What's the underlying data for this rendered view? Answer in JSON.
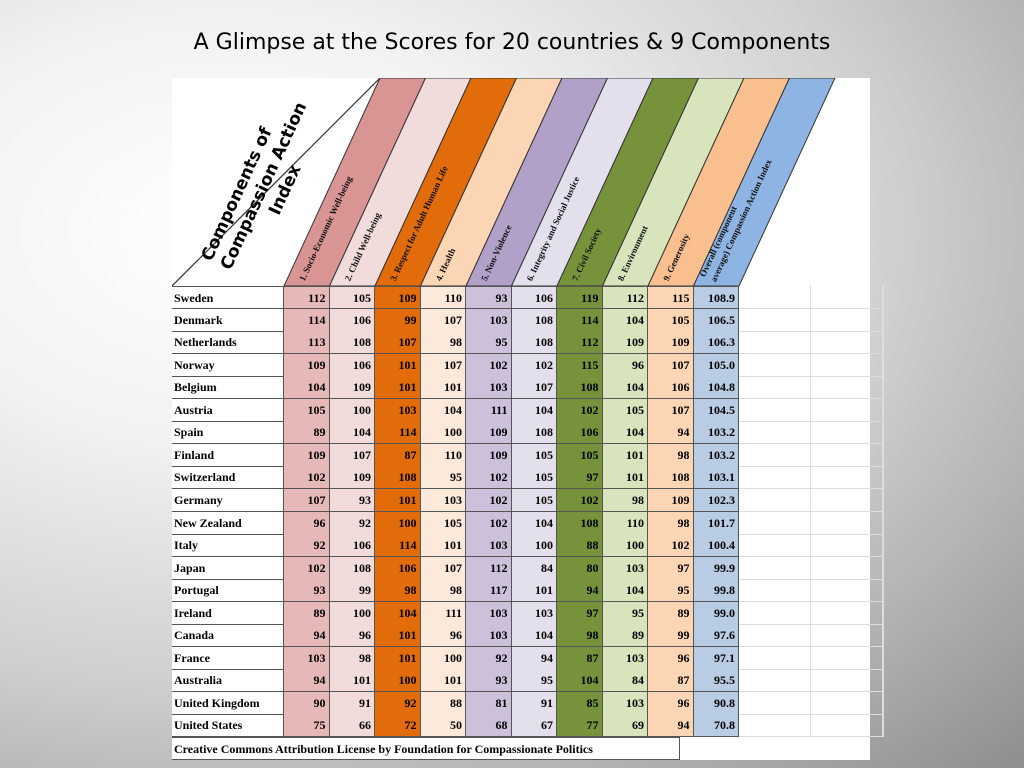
{
  "title": "A Glimpse at the Scores for 20 countries & 9 Components",
  "corner_label": [
    "Components of",
    "Compassion Action",
    "Index"
  ],
  "columns": [
    {
      "label": "1. Socio-Economic Well-being",
      "header_color": "#d99594",
      "cell_color": "#e6b8b7"
    },
    {
      "label": "2. Child Well-being",
      "header_color": "#f2dcdb",
      "cell_color": "#f2dcdb"
    },
    {
      "label": "3. Respect for Adult Human Life",
      "header_color": "#e26b0a",
      "cell_color": "#e26b0a"
    },
    {
      "label": "4. Health",
      "header_color": "#fcd5b4",
      "cell_color": "#fde9d9"
    },
    {
      "label": "5. Non-Violence",
      "header_color": "#b1a0c7",
      "cell_color": "#ccc0da"
    },
    {
      "label": "6. Integrity and Social Justice",
      "header_color": "#e4dfec",
      "cell_color": "#e4dfec"
    },
    {
      "label": "7. Civil Society",
      "header_color": "#76933c",
      "cell_color": "#76933c"
    },
    {
      "label": "8. Environment",
      "header_color": "#d8e4bc",
      "cell_color": "#d8e4bc"
    },
    {
      "label": "9. Generosity",
      "header_color": "#fabf8f",
      "cell_color": "#fcd5b4"
    },
    {
      "label": "Overall (component average) Compassion Action Index",
      "header_color": "#8db4e2",
      "cell_color": "#b8cce4"
    }
  ],
  "rows": [
    {
      "country": "Sweden",
      "values": [
        "112",
        "105",
        "109",
        "110",
        "93",
        "106",
        "119",
        "112",
        "115",
        "108.9"
      ]
    },
    {
      "country": "Denmark",
      "values": [
        "114",
        "106",
        "99",
        "107",
        "103",
        "108",
        "114",
        "104",
        "105",
        "106.5"
      ]
    },
    {
      "country": "Netherlands",
      "values": [
        "113",
        "108",
        "107",
        "98",
        "95",
        "108",
        "112",
        "109",
        "109",
        "106.3"
      ]
    },
    {
      "country": "Norway",
      "values": [
        "109",
        "106",
        "101",
        "107",
        "102",
        "102",
        "115",
        "96",
        "107",
        "105.0"
      ]
    },
    {
      "country": "Belgium",
      "values": [
        "104",
        "109",
        "101",
        "101",
        "103",
        "107",
        "108",
        "104",
        "106",
        "104.8"
      ]
    },
    {
      "country": "Austria",
      "values": [
        "105",
        "100",
        "103",
        "104",
        "111",
        "104",
        "102",
        "105",
        "107",
        "104.5"
      ]
    },
    {
      "country": "Spain",
      "values": [
        "89",
        "104",
        "114",
        "100",
        "109",
        "108",
        "106",
        "104",
        "94",
        "103.2"
      ]
    },
    {
      "country": "Finland",
      "values": [
        "109",
        "107",
        "87",
        "110",
        "109",
        "105",
        "105",
        "101",
        "98",
        "103.2"
      ]
    },
    {
      "country": "Switzerland",
      "values": [
        "102",
        "109",
        "108",
        "95",
        "102",
        "105",
        "97",
        "101",
        "108",
        "103.1"
      ]
    },
    {
      "country": "Germany",
      "values": [
        "107",
        "93",
        "101",
        "103",
        "102",
        "105",
        "102",
        "98",
        "109",
        "102.3"
      ]
    },
    {
      "country": "New Zealand",
      "values": [
        "96",
        "92",
        "100",
        "105",
        "102",
        "104",
        "108",
        "110",
        "98",
        "101.7"
      ]
    },
    {
      "country": "Italy",
      "values": [
        "92",
        "106",
        "114",
        "101",
        "103",
        "100",
        "88",
        "100",
        "102",
        "100.4"
      ]
    },
    {
      "country": "Japan",
      "values": [
        "102",
        "108",
        "106",
        "107",
        "112",
        "84",
        "80",
        "103",
        "97",
        "99.9"
      ]
    },
    {
      "country": "Portugal",
      "values": [
        "93",
        "99",
        "98",
        "98",
        "117",
        "101",
        "94",
        "104",
        "95",
        "99.8"
      ]
    },
    {
      "country": "Ireland",
      "values": [
        "89",
        "100",
        "104",
        "111",
        "103",
        "103",
        "97",
        "95",
        "89",
        "99.0"
      ]
    },
    {
      "country": "Canada",
      "values": [
        "94",
        "96",
        "101",
        "96",
        "103",
        "104",
        "98",
        "89",
        "99",
        "97.6"
      ]
    },
    {
      "country": "France",
      "values": [
        "103",
        "98",
        "101",
        "100",
        "92",
        "94",
        "87",
        "103",
        "96",
        "97.1"
      ]
    },
    {
      "country": "Australia",
      "values": [
        "94",
        "101",
        "100",
        "101",
        "93",
        "95",
        "104",
        "84",
        "87",
        "95.5"
      ]
    },
    {
      "country": "United Kingdom",
      "values": [
        "90",
        "91",
        "92",
        "88",
        "81",
        "91",
        "85",
        "103",
        "96",
        "90.8"
      ]
    },
    {
      "country": "United States",
      "values": [
        "75",
        "66",
        "72",
        "50",
        "68",
        "67",
        "77",
        "69",
        "94",
        "70.8"
      ]
    }
  ],
  "footer": "Creative Commons Attribution License by Foundation for Compassionate Politics"
}
